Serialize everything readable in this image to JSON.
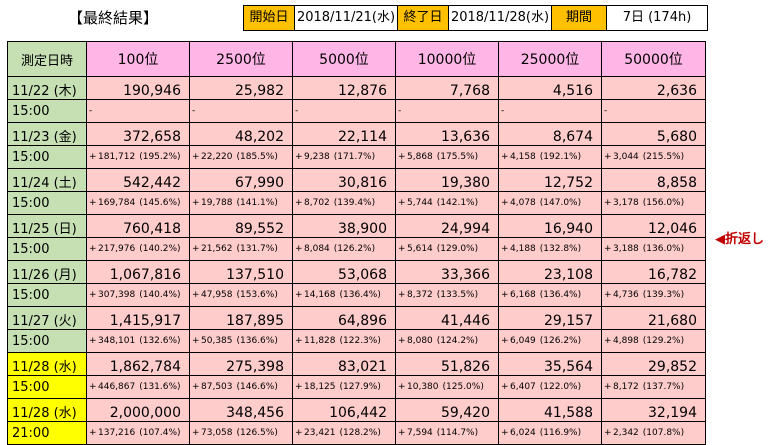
{
  "header": {
    "title": "【最終結果】",
    "start_label": "開始日",
    "start_value": "2018/11/21(水)",
    "end_label": "終了日",
    "end_value": "2018/11/28(水)",
    "period_label": "期間",
    "period_value": "7日 (174h)"
  },
  "columns": [
    "測定日時",
    "100位",
    "2500位",
    "5000位",
    "10000位",
    "25000位",
    "50000位"
  ],
  "rows": [
    {
      "date": "11/22 (木)",
      "time": "15:00",
      "values": [
        "190,946",
        "25,982",
        "12,876",
        "7,768",
        "4,516",
        "2,636"
      ],
      "diffs": [
        {
          "sign": "-",
          "diff": "",
          "pct": ""
        },
        {
          "sign": "-",
          "diff": "",
          "pct": ""
        },
        {
          "sign": "-",
          "diff": "",
          "pct": ""
        },
        {
          "sign": "-",
          "diff": "",
          "pct": ""
        },
        {
          "sign": "-",
          "diff": "",
          "pct": ""
        },
        {
          "sign": "-",
          "diff": "",
          "pct": ""
        }
      ]
    },
    {
      "date": "11/23 (金)",
      "time": "15:00",
      "values": [
        "372,658",
        "48,202",
        "22,114",
        "13,636",
        "8,674",
        "5,680"
      ],
      "diffs": [
        {
          "sign": "+",
          "diff": "181,712",
          "pct": "(195.2%)"
        },
        {
          "sign": "+",
          "diff": "22,220",
          "pct": "(185.5%)"
        },
        {
          "sign": "+",
          "diff": "9,238",
          "pct": "(171.7%)"
        },
        {
          "sign": "+",
          "diff": "5,868",
          "pct": "(175.5%)"
        },
        {
          "sign": "+",
          "diff": "4,158",
          "pct": "(192.1%)"
        },
        {
          "sign": "+",
          "diff": "3,044",
          "pct": "(215.5%)"
        }
      ]
    },
    {
      "date": "11/24 (土)",
      "time": "15:00",
      "values": [
        "542,442",
        "67,990",
        "30,816",
        "19,380",
        "12,752",
        "8,858"
      ],
      "diffs": [
        {
          "sign": "+",
          "diff": "169,784",
          "pct": "(145.6%)"
        },
        {
          "sign": "+",
          "diff": "19,788",
          "pct": "(141.1%)"
        },
        {
          "sign": "+",
          "diff": "8,702",
          "pct": "(139.4%)"
        },
        {
          "sign": "+",
          "diff": "5,744",
          "pct": "(142.1%)"
        },
        {
          "sign": "+",
          "diff": "4,078",
          "pct": "(147.0%)"
        },
        {
          "sign": "+",
          "diff": "3,178",
          "pct": "(156.0%)"
        }
      ]
    },
    {
      "date": "11/25 (日)",
      "time": "15:00",
      "values": [
        "760,418",
        "89,552",
        "38,900",
        "24,994",
        "16,940",
        "12,046"
      ],
      "diffs": [
        {
          "sign": "+",
          "diff": "217,976",
          "pct": "(140.2%)"
        },
        {
          "sign": "+",
          "diff": "21,562",
          "pct": "(131.7%)"
        },
        {
          "sign": "+",
          "diff": "8,084",
          "pct": "(126.2%)"
        },
        {
          "sign": "+",
          "diff": "5,614",
          "pct": "(129.0%)"
        },
        {
          "sign": "+",
          "diff": "4,188",
          "pct": "(132.8%)"
        },
        {
          "sign": "+",
          "diff": "3,188",
          "pct": "(136.0%)"
        }
      ]
    },
    {
      "date": "11/26 (月)",
      "time": "15:00",
      "values": [
        "1,067,816",
        "137,510",
        "53,068",
        "33,366",
        "23,108",
        "16,782"
      ],
      "diffs": [
        {
          "sign": "+",
          "diff": "307,398",
          "pct": "(140.4%)"
        },
        {
          "sign": "+",
          "diff": "47,958",
          "pct": "(153.6%)"
        },
        {
          "sign": "+",
          "diff": "14,168",
          "pct": "(136.4%)"
        },
        {
          "sign": "+",
          "diff": "8,372",
          "pct": "(133.5%)"
        },
        {
          "sign": "+",
          "diff": "6,168",
          "pct": "(136.4%)"
        },
        {
          "sign": "+",
          "diff": "4,736",
          "pct": "(139.3%)"
        }
      ]
    },
    {
      "date": "11/27 (火)",
      "time": "15:00",
      "values": [
        "1,415,917",
        "187,895",
        "64,896",
        "41,446",
        "29,157",
        "21,680"
      ],
      "diffs": [
        {
          "sign": "+",
          "diff": "348,101",
          "pct": "(132.6%)"
        },
        {
          "sign": "+",
          "diff": "50,385",
          "pct": "(136.6%)"
        },
        {
          "sign": "+",
          "diff": "11,828",
          "pct": "(122.3%)"
        },
        {
          "sign": "+",
          "diff": "8,080",
          "pct": "(124.2%)"
        },
        {
          "sign": "+",
          "diff": "6,049",
          "pct": "(126.2%)"
        },
        {
          "sign": "+",
          "diff": "4,898",
          "pct": "(129.2%)"
        }
      ]
    },
    {
      "date": "11/28 (水)",
      "time": "15:00",
      "highlight": true,
      "values": [
        "1,862,784",
        "275,398",
        "83,021",
        "51,826",
        "35,564",
        "29,852"
      ],
      "diffs": [
        {
          "sign": "+",
          "diff": "446,867",
          "pct": "(131.6%)"
        },
        {
          "sign": "+",
          "diff": "87,503",
          "pct": "(146.6%)"
        },
        {
          "sign": "+",
          "diff": "18,125",
          "pct": "(127.9%)"
        },
        {
          "sign": "+",
          "diff": "10,380",
          "pct": "(125.0%)"
        },
        {
          "sign": "+",
          "diff": "6,407",
          "pct": "(122.0%)"
        },
        {
          "sign": "+",
          "diff": "8,172",
          "pct": "(137.7%)"
        }
      ]
    },
    {
      "date": "11/28 (水)",
      "time": "21:00",
      "highlight": true,
      "values": [
        "2,000,000",
        "348,456",
        "106,442",
        "59,420",
        "41,588",
        "32,194"
      ],
      "diffs": [
        {
          "sign": "+",
          "diff": "137,216",
          "pct": "(107.4%)"
        },
        {
          "sign": "+",
          "diff": "73,058",
          "pct": "(126.5%)"
        },
        {
          "sign": "+",
          "diff": "23,421",
          "pct": "(128.2%)"
        },
        {
          "sign": "+",
          "diff": "7,594",
          "pct": "(114.7%)"
        },
        {
          "sign": "+",
          "diff": "6,024",
          "pct": "(116.9%)"
        },
        {
          "sign": "+",
          "diff": "2,342",
          "pct": "(107.8%)"
        }
      ]
    }
  ],
  "note": "◀折返し"
}
